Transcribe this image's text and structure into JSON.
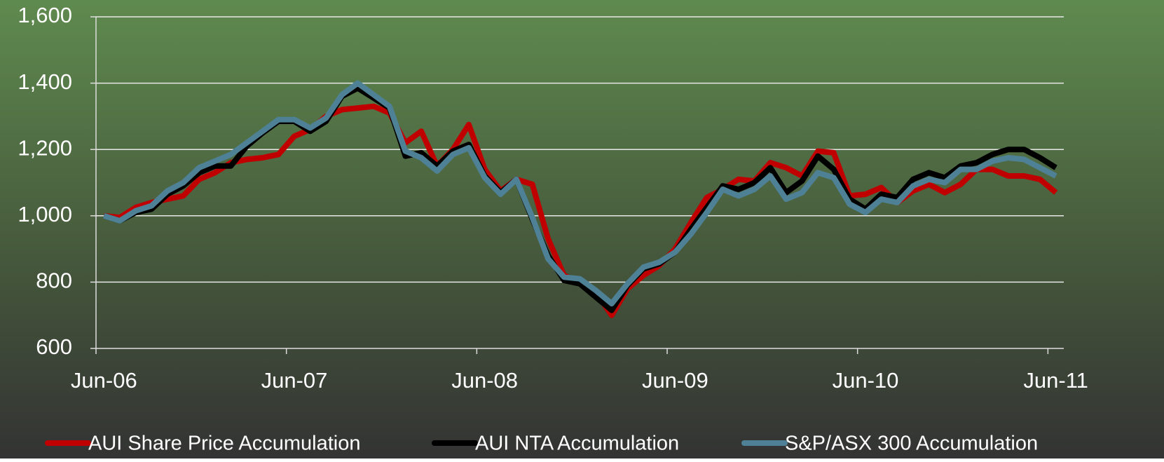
{
  "chart_data": {
    "type": "line",
    "categories": [
      "Jun-06",
      null,
      null,
      null,
      null,
      null,
      null,
      null,
      null,
      null,
      null,
      null,
      "Jun-07",
      null,
      null,
      null,
      null,
      null,
      null,
      null,
      null,
      null,
      null,
      null,
      "Jun-08",
      null,
      null,
      null,
      null,
      null,
      null,
      null,
      null,
      null,
      null,
      null,
      "Jun-09",
      null,
      null,
      null,
      null,
      null,
      null,
      null,
      null,
      null,
      null,
      null,
      "Jun-10",
      null,
      null,
      null,
      null,
      null,
      null,
      null,
      null,
      null,
      null,
      null,
      "Jun-11"
    ],
    "series": [
      {
        "name": "AUI Share Price Accumulation",
        "color": "#c00000",
        "values": [
          1000,
          995,
          1025,
          1040,
          1050,
          1060,
          1110,
          1130,
          1160,
          1170,
          1175,
          1185,
          1240,
          1260,
          1300,
          1320,
          1325,
          1330,
          1310,
          1220,
          1255,
          1150,
          1200,
          1275,
          1140,
          1075,
          1110,
          1095,
          930,
          820,
          800,
          770,
          700,
          780,
          820,
          850,
          900,
          980,
          1055,
          1080,
          1110,
          1105,
          1160,
          1145,
          1120,
          1195,
          1190,
          1060,
          1065,
          1085,
          1040,
          1075,
          1095,
          1070,
          1095,
          1140,
          1140,
          1120,
          1120,
          1110,
          1070
        ]
      },
      {
        "name": "AUI NTA Accumulation",
        "color": "#000000",
        "values": [
          1000,
          985,
          1010,
          1020,
          1065,
          1090,
          1130,
          1150,
          1150,
          1210,
          1250,
          1285,
          1285,
          1255,
          1285,
          1360,
          1385,
          1355,
          1325,
          1180,
          1190,
          1150,
          1195,
          1215,
          1120,
          1070,
          1110,
          990,
          880,
          805,
          795,
          755,
          715,
          790,
          840,
          855,
          890,
          960,
          1025,
          1090,
          1080,
          1100,
          1145,
          1070,
          1105,
          1180,
          1140,
          1050,
          1020,
          1065,
          1055,
          1110,
          1130,
          1115,
          1150,
          1160,
          1185,
          1200,
          1200,
          1175,
          1145
        ]
      },
      {
        "name": "S&P/ASX 300 Accumulation",
        "color": "#4f8196",
        "values": [
          1000,
          985,
          1015,
          1030,
          1075,
          1100,
          1145,
          1165,
          1185,
          1220,
          1255,
          1290,
          1290,
          1265,
          1295,
          1365,
          1400,
          1365,
          1330,
          1195,
          1175,
          1135,
          1185,
          1205,
          1115,
          1065,
          1110,
          995,
          870,
          815,
          810,
          775,
          735,
          795,
          845,
          860,
          890,
          945,
          1010,
          1080,
          1060,
          1080,
          1120,
          1050,
          1070,
          1130,
          1115,
          1035,
          1010,
          1050,
          1040,
          1090,
          1110,
          1100,
          1140,
          1140,
          1165,
          1175,
          1170,
          1145,
          1120
        ]
      }
    ],
    "ylim": [
      600,
      1600
    ],
    "yticks": [
      {
        "value": 600,
        "label": "600"
      },
      {
        "value": 800,
        "label": "800"
      },
      {
        "value": 1000,
        "label": "1,000"
      },
      {
        "value": 1200,
        "label": "1,200"
      },
      {
        "value": 1400,
        "label": "1,400"
      },
      {
        "value": 1600,
        "label": "1,600"
      }
    ],
    "grid": true,
    "legend": "bottom"
  }
}
